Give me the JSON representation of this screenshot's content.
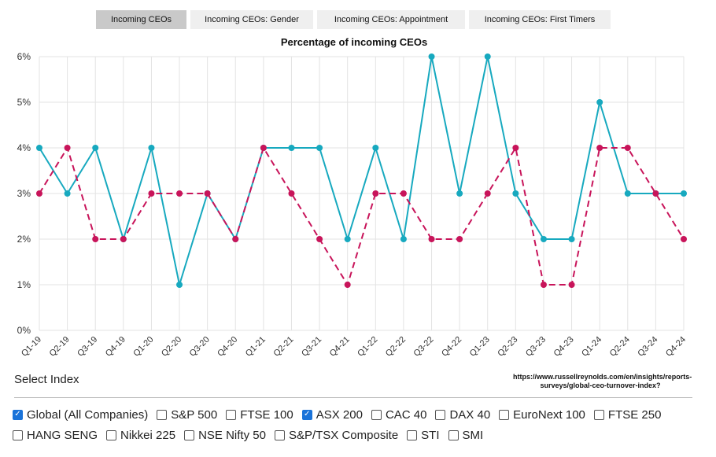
{
  "tabs": [
    {
      "label": "Incoming CEOs",
      "active": true
    },
    {
      "label": "Incoming CEOs: Gender",
      "active": false
    },
    {
      "label": "Incoming CEOs: Appointment",
      "active": false
    },
    {
      "label": "Incoming CEOs: First Timers",
      "active": false
    }
  ],
  "chart_data": {
    "type": "line",
    "title": "Percentage of incoming CEOs",
    "categories": [
      "Q1-19",
      "Q2-19",
      "Q3-19",
      "Q4-19",
      "Q1-20",
      "Q2-20",
      "Q3-20",
      "Q4-20",
      "Q1-21",
      "Q2-21",
      "Q3-21",
      "Q4-21",
      "Q1-22",
      "Q2-22",
      "Q3-22",
      "Q4-22",
      "Q1-23",
      "Q2-23",
      "Q3-23",
      "Q4-23",
      "Q1-24",
      "Q2-24",
      "Q3-24",
      "Q4-24"
    ],
    "ylim": [
      0,
      6
    ],
    "yticks": [
      "0%",
      "1%",
      "2%",
      "3%",
      "4%",
      "5%",
      "6%"
    ],
    "grid": true,
    "series": [
      {
        "color": "#17a9bf",
        "dashed": false,
        "values": [
          4,
          3,
          4,
          2,
          4,
          1,
          3,
          2,
          4,
          4,
          4,
          2,
          4,
          2,
          6,
          3,
          6,
          3,
          2,
          2,
          5,
          3,
          3,
          3
        ]
      },
      {
        "color": "#c8145a",
        "dashed": true,
        "values": [
          3,
          4,
          2,
          2,
          3,
          3,
          3,
          2,
          4,
          3,
          2,
          1,
          3,
          3,
          2,
          2,
          3,
          4,
          1,
          1,
          4,
          4,
          3,
          2
        ]
      }
    ]
  },
  "source_note": "https://www.russellreynolds.com/en/insights/reports-surveys/global-ceo-turnover-index?",
  "select_index": {
    "label": "Select Index",
    "options": [
      {
        "label": "Global (All Companies)",
        "checked": true
      },
      {
        "label": "S&P 500",
        "checked": false
      },
      {
        "label": "FTSE 100",
        "checked": false
      },
      {
        "label": "ASX 200",
        "checked": true
      },
      {
        "label": "CAC 40",
        "checked": false
      },
      {
        "label": "DAX 40",
        "checked": false
      },
      {
        "label": "EuroNext 100",
        "checked": false
      },
      {
        "label": "FTSE 250",
        "checked": false
      },
      {
        "label": "HANG SENG",
        "checked": false
      },
      {
        "label": "Nikkei 225",
        "checked": false
      },
      {
        "label": "NSE Nifty 50",
        "checked": false
      },
      {
        "label": "S&P/TSX Composite",
        "checked": false
      },
      {
        "label": "STI",
        "checked": false
      },
      {
        "label": "SMI",
        "checked": false
      }
    ]
  }
}
